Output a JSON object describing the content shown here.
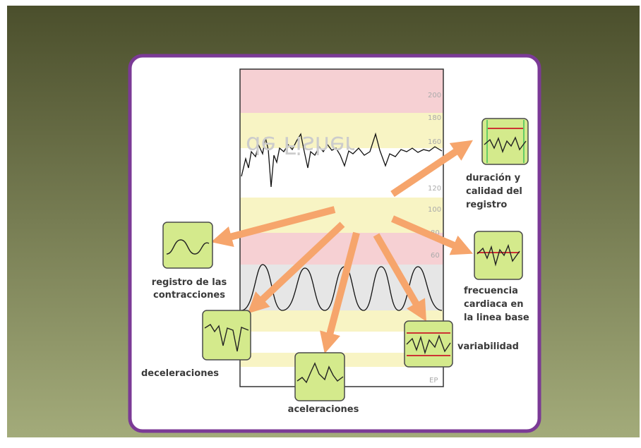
{
  "title": "de Fisher",
  "scale_ticks": [
    "200",
    "180",
    "160",
    "120",
    "100",
    "80",
    "60",
    "EP"
  ],
  "labels": {
    "duration": [
      "duración y",
      "calidad del",
      "registro"
    ],
    "contractions": [
      "registro de las",
      "contracciones"
    ],
    "baseline": [
      "frecuencia",
      "cardiaca en",
      "la linea base"
    ],
    "decelerations": [
      "deceleraciones"
    ],
    "accelerations": [
      "aceleraciones"
    ],
    "variability": [
      "variabilidad"
    ]
  }
}
